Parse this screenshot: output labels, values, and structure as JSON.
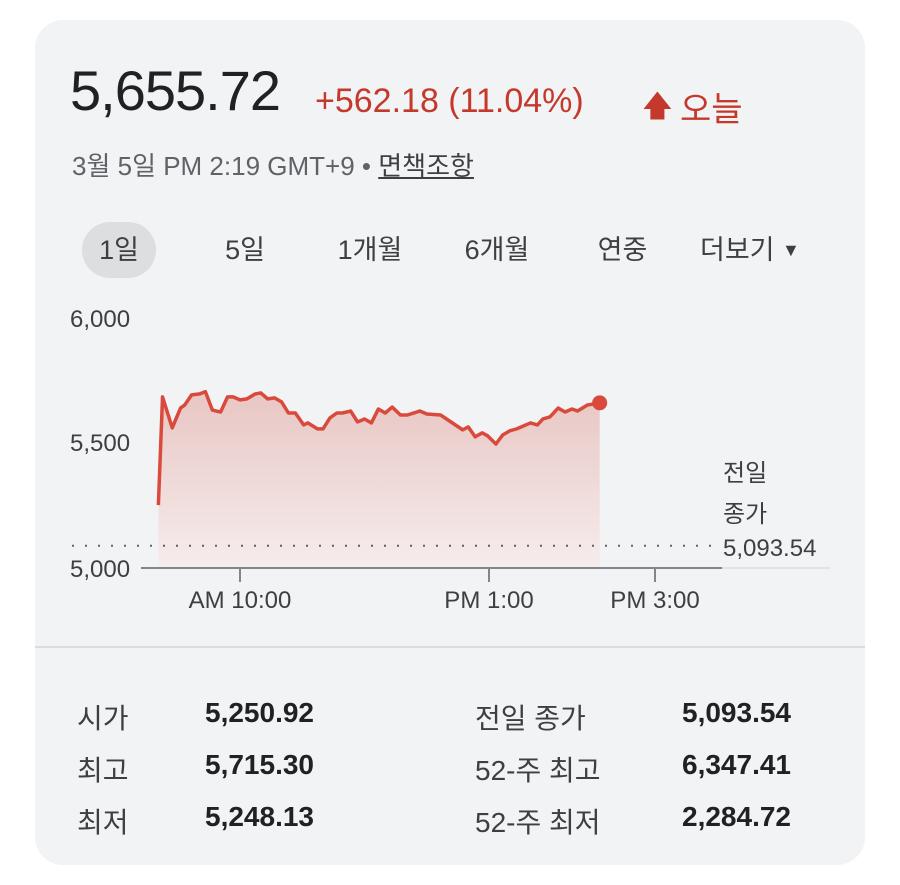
{
  "header": {
    "price": "5,655.72",
    "change": "+562.18 (11.04%)",
    "arrow_icon": "arrow-up-icon",
    "period": "오늘",
    "timestamp": "3월 5일 PM 2:19 GMT+9 •",
    "disclaimer": "면책조항"
  },
  "tabs": [
    {
      "label": "1일",
      "active": true
    },
    {
      "label": "5일"
    },
    {
      "label": "1개월"
    },
    {
      "label": "6개월"
    },
    {
      "label": "연중"
    },
    {
      "label": "더보기"
    }
  ],
  "colors": {
    "up": "#c5392c",
    "line": "#d94a3d"
  },
  "chart_data": {
    "type": "area",
    "x_unit": "minutes since AM 9:00",
    "x": [
      1,
      4,
      11,
      17,
      20,
      25,
      31,
      35,
      40,
      46,
      51,
      55,
      60,
      65,
      71,
      75,
      80,
      85,
      90,
      95,
      100,
      106,
      109,
      116,
      120,
      125,
      130,
      134,
      140,
      145,
      150,
      155,
      160,
      165,
      170,
      176,
      181,
      190,
      195,
      205,
      221,
      225,
      230,
      235,
      239,
      245,
      250,
      255,
      260,
      270,
      275,
      279,
      284,
      290,
      295,
      300,
      304,
      311,
      320
    ],
    "values": [
      5258,
      5694,
      5569,
      5649,
      5661,
      5702,
      5706,
      5715,
      5641,
      5633,
      5694,
      5694,
      5682,
      5686,
      5706,
      5710,
      5686,
      5690,
      5674,
      5629,
      5629,
      5581,
      5589,
      5565,
      5565,
      5609,
      5629,
      5629,
      5637,
      5593,
      5605,
      5589,
      5645,
      5629,
      5653,
      5621,
      5621,
      5637,
      5625,
      5621,
      5561,
      5573,
      5533,
      5549,
      5537,
      5504,
      5541,
      5557,
      5565,
      5589,
      5581,
      5605,
      5613,
      5649,
      5633,
      5645,
      5637,
      5661,
      5670
    ],
    "ylim": [
      5000,
      6000
    ],
    "xlim": [
      0,
      407
    ],
    "y_ticks": [
      "6,000",
      "5,500",
      "5,000"
    ],
    "y_tick_values": [
      6000,
      5500,
      5000
    ],
    "x_ticks": [
      "AM 10:00",
      "PM 1:00",
      "PM 3:00"
    ],
    "x_tick_values": [
      60,
      240,
      360
    ],
    "reference": {
      "label_line1": "전일",
      "label_line2": "종가",
      "value": 5093.54,
      "value_label": "5,093.54"
    }
  },
  "stats": {
    "left": [
      {
        "label": "시가",
        "value": "5,250.92"
      },
      {
        "label": "최고",
        "value": "5,715.30"
      },
      {
        "label": "최저",
        "value": "5,248.13"
      }
    ],
    "right": [
      {
        "label": "전일 종가",
        "value": "5,093.54"
      },
      {
        "label": "52-주 최고",
        "value": "6,347.41"
      },
      {
        "label": "52-주 최저",
        "value": "2,284.72"
      }
    ]
  }
}
